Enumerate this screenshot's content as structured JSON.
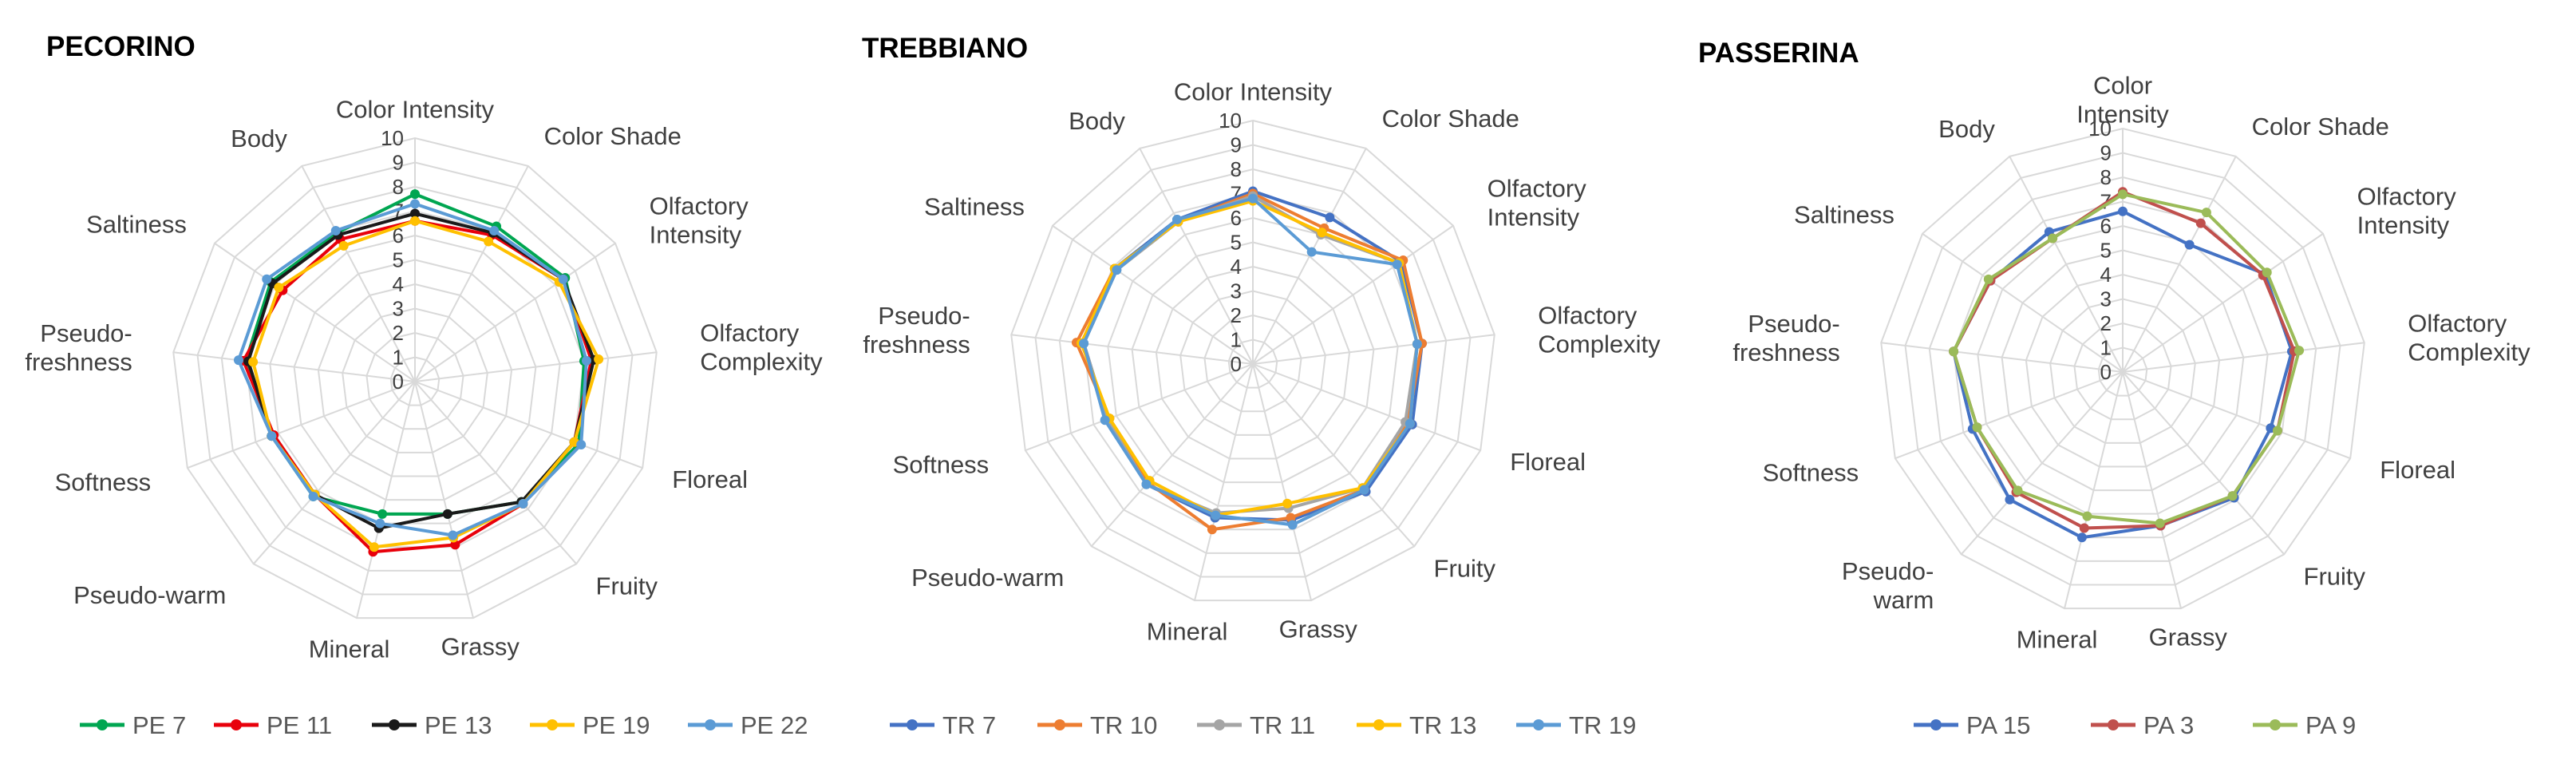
{
  "chart_data": [
    {
      "type": "radar",
      "title": "PECORINO",
      "axes": [
        "Color Intensity",
        "Color Shade",
        "Olfactory Intensity",
        "Olfactory Complexity",
        "Floreal",
        "Fruity",
        "Grassy",
        "Mineral",
        "Pseudo-warm",
        "Softness",
        "Pseudo-freshness",
        "Saltiness",
        "Body"
      ],
      "axis_labels": [
        [
          "Color Intensity"
        ],
        [
          "Color Shade"
        ],
        [
          "Olfactory",
          "Intensity"
        ],
        [
          "Olfactory",
          "Complexity"
        ],
        [
          "Floreal"
        ],
        [
          "Fruity"
        ],
        [
          "Grassy"
        ],
        [
          "Mineral"
        ],
        [
          "Pseudo-warm"
        ],
        [
          "Softness"
        ],
        [
          "Pseudo-",
          "freshness"
        ],
        [
          "Saltiness"
        ],
        [
          "Body"
        ]
      ],
      "ticks": [
        "0",
        "1",
        "2",
        "3",
        "4",
        "5",
        "6",
        "7",
        "8",
        "9",
        "10"
      ],
      "rlim": [
        0,
        10
      ],
      "legend_position": "bottom",
      "series": [
        {
          "name": "PE 7",
          "color": "#00A651",
          "values": [
            7.7,
            7.2,
            7.5,
            7.0,
            7.2,
            6.6,
            5.6,
            5.6,
            6.3,
            6.3,
            7.0,
            7.2,
            6.9
          ]
        },
        {
          "name": "PE 11",
          "color": "#E8000B",
          "values": [
            6.6,
            6.8,
            7.4,
            7.3,
            7.0,
            6.7,
            6.9,
            7.2,
            6.2,
            6.2,
            7.1,
            6.6,
            6.6
          ]
        },
        {
          "name": "PE 13",
          "color": "#1A1A1A",
          "values": [
            6.9,
            6.9,
            7.4,
            7.4,
            7.0,
            6.6,
            5.6,
            6.2,
            6.2,
            6.3,
            6.9,
            7.1,
            6.8
          ]
        },
        {
          "name": "PE 19",
          "color": "#FFC000",
          "values": [
            6.6,
            6.5,
            7.2,
            7.6,
            7.0,
            6.7,
            6.6,
            7.0,
            6.2,
            6.3,
            6.7,
            6.8,
            6.3
          ]
        },
        {
          "name": "PE 22",
          "color": "#5B9BD5",
          "values": [
            7.3,
            7.0,
            7.4,
            7.1,
            7.3,
            6.7,
            6.5,
            6.0,
            6.3,
            6.3,
            7.3,
            7.4,
            7.0
          ]
        }
      ]
    },
    {
      "type": "radar",
      "title": "TREBBIANO",
      "axes": [
        "Color Intensity",
        "Color Shade",
        "Olfactory Intensity",
        "Olfactory Complexity",
        "Floreal",
        "Fruity",
        "Grassy",
        "Mineral",
        "Pseudo-warm",
        "Softness",
        "Pseudo-freshness",
        "Saltiness",
        "Body"
      ],
      "axis_labels": [
        [
          "Color Intensity"
        ],
        [
          "Color Shade"
        ],
        [
          "Olfactory",
          "Intensity"
        ],
        [
          "Olfactory",
          "Complexity"
        ],
        [
          "Floreal"
        ],
        [
          "Fruity"
        ],
        [
          "Grassy"
        ],
        [
          "Mineral"
        ],
        [
          "Pseudo-warm"
        ],
        [
          "Softness"
        ],
        [
          "Pseudo-",
          "freshness"
        ],
        [
          "Saltiness"
        ],
        [
          "Body"
        ]
      ],
      "ticks": [
        "0",
        "1",
        "2",
        "3",
        "4",
        "5",
        "6",
        "7",
        "8",
        "9",
        "10"
      ],
      "rlim": [
        0,
        10
      ],
      "legend_position": "bottom",
      "series": [
        {
          "name": "TR 7",
          "color": "#4472C4",
          "values": [
            7.1,
            6.8,
            7.4,
            7.0,
            7.0,
            7.0,
            6.6,
            6.5,
            6.6,
            6.4,
            7.0,
            6.9,
            6.7
          ]
        },
        {
          "name": "TR 10",
          "color": "#ED7D31",
          "values": [
            7.0,
            6.3,
            7.5,
            7.0,
            6.8,
            6.9,
            6.5,
            7.0,
            6.5,
            6.3,
            7.3,
            6.9,
            6.6
          ]
        },
        {
          "name": "TR 11",
          "color": "#A5A5A5",
          "values": [
            6.9,
            6.0,
            7.3,
            6.8,
            6.7,
            6.8,
            6.1,
            6.3,
            6.6,
            6.4,
            7.0,
            6.8,
            6.6
          ]
        },
        {
          "name": "TR 13",
          "color": "#FFC000",
          "values": [
            6.7,
            6.1,
            7.3,
            6.8,
            6.9,
            6.8,
            5.9,
            6.4,
            6.4,
            6.3,
            7.1,
            6.9,
            6.6
          ]
        },
        {
          "name": "TR 19",
          "color": "#5B9BD5",
          "values": [
            6.8,
            5.2,
            7.2,
            6.8,
            6.9,
            6.9,
            6.8,
            6.4,
            6.6,
            6.5,
            7.0,
            6.8,
            6.7
          ]
        }
      ]
    },
    {
      "type": "radar",
      "title": "PASSERINA",
      "axes": [
        "Color Intensity",
        "Color Shade",
        "Olfactory Intensity",
        "Olfactory Complexity",
        "Floreal",
        "Fruity",
        "Grassy",
        "Mineral",
        "Pseudo-warm",
        "Softness",
        "Pseudo-freshness",
        "Saltiness",
        "Body"
      ],
      "axis_labels": [
        [
          "Color",
          "Intensity"
        ],
        [
          "Color Shade"
        ],
        [
          "Olfactory",
          "Intensity"
        ],
        [
          "Olfactory",
          "Complexity"
        ],
        [
          "Floreal"
        ],
        [
          "Fruity"
        ],
        [
          "Grassy"
        ],
        [
          "Mineral"
        ],
        [
          "Pseudo-",
          "warm"
        ],
        [
          "Softness"
        ],
        [
          "Pseudo-",
          "freshness"
        ],
        [
          "Saltiness"
        ],
        [
          "Body"
        ]
      ],
      "ticks": [
        "0",
        "1",
        "2",
        "3",
        "4",
        "5",
        "6",
        "7",
        "8",
        "9",
        "10"
      ],
      "rlim": [
        0,
        10
      ],
      "legend_position": "bottom",
      "series": [
        {
          "name": "PA 15",
          "color": "#4472C4",
          "values": [
            6.6,
            5.9,
            7.1,
            7.0,
            6.5,
            6.9,
            6.5,
            7.0,
            7.0,
            6.6,
            7.0,
            6.6,
            6.5
          ]
        },
        {
          "name": "PA 3",
          "color": "#C0504D",
          "values": [
            7.4,
            6.9,
            7.0,
            7.1,
            6.8,
            6.8,
            6.5,
            6.6,
            6.6,
            6.4,
            7.0,
            6.6,
            6.2
          ]
        },
        {
          "name": "PA 9",
          "color": "#9BBB59",
          "values": [
            7.3,
            7.4,
            7.2,
            7.3,
            6.8,
            6.8,
            6.4,
            6.1,
            6.5,
            6.4,
            7.0,
            6.7,
            6.2
          ]
        }
      ]
    }
  ]
}
